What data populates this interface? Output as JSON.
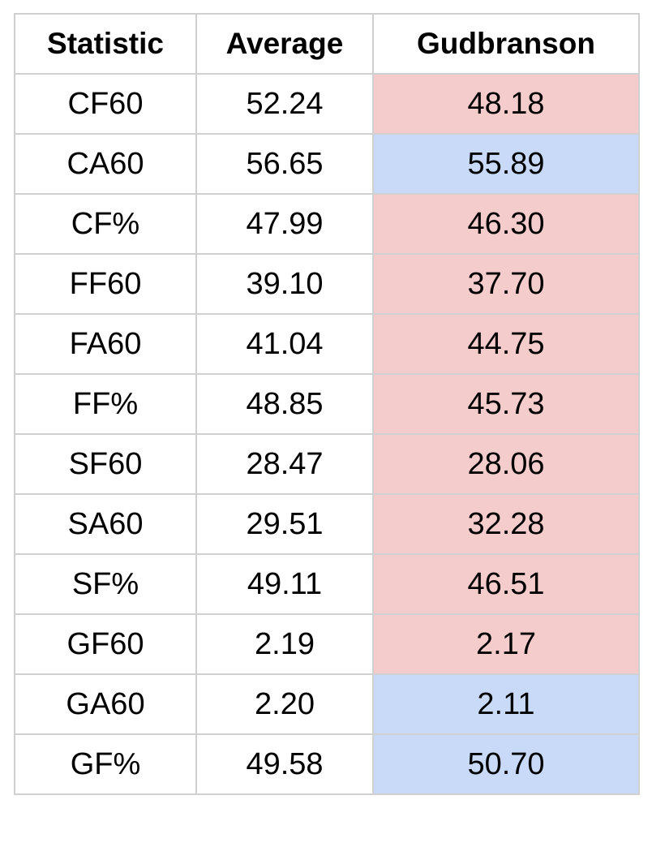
{
  "table": {
    "headers": [
      "Statistic",
      "Average",
      "Gudbranson"
    ],
    "rows": [
      {
        "statistic": "CF60",
        "average": "52.24",
        "gudbranson": "48.18",
        "highlight": "red"
      },
      {
        "statistic": "CA60",
        "average": "56.65",
        "gudbranson": "55.89",
        "highlight": "blue"
      },
      {
        "statistic": "CF%",
        "average": "47.99",
        "gudbranson": "46.30",
        "highlight": "red"
      },
      {
        "statistic": "FF60",
        "average": "39.10",
        "gudbranson": "37.70",
        "highlight": "red"
      },
      {
        "statistic": "FA60",
        "average": "41.04",
        "gudbranson": "44.75",
        "highlight": "red"
      },
      {
        "statistic": "FF%",
        "average": "48.85",
        "gudbranson": "45.73",
        "highlight": "red"
      },
      {
        "statistic": "SF60",
        "average": "28.47",
        "gudbranson": "28.06",
        "highlight": "red"
      },
      {
        "statistic": "SA60",
        "average": "29.51",
        "gudbranson": "32.28",
        "highlight": "red"
      },
      {
        "statistic": "SF%",
        "average": "49.11",
        "gudbranson": "46.51",
        "highlight": "red"
      },
      {
        "statistic": "GF60",
        "average": "2.19",
        "gudbranson": "2.17",
        "highlight": "red"
      },
      {
        "statistic": "GA60",
        "average": "2.20",
        "gudbranson": "2.11",
        "highlight": "blue"
      },
      {
        "statistic": "GF%",
        "average": "49.58",
        "gudbranson": "50.70",
        "highlight": "blue"
      }
    ]
  },
  "colors": {
    "highlight_red": "#f4cccc",
    "highlight_blue": "#c9daf8",
    "border": "#d0d0d0"
  }
}
